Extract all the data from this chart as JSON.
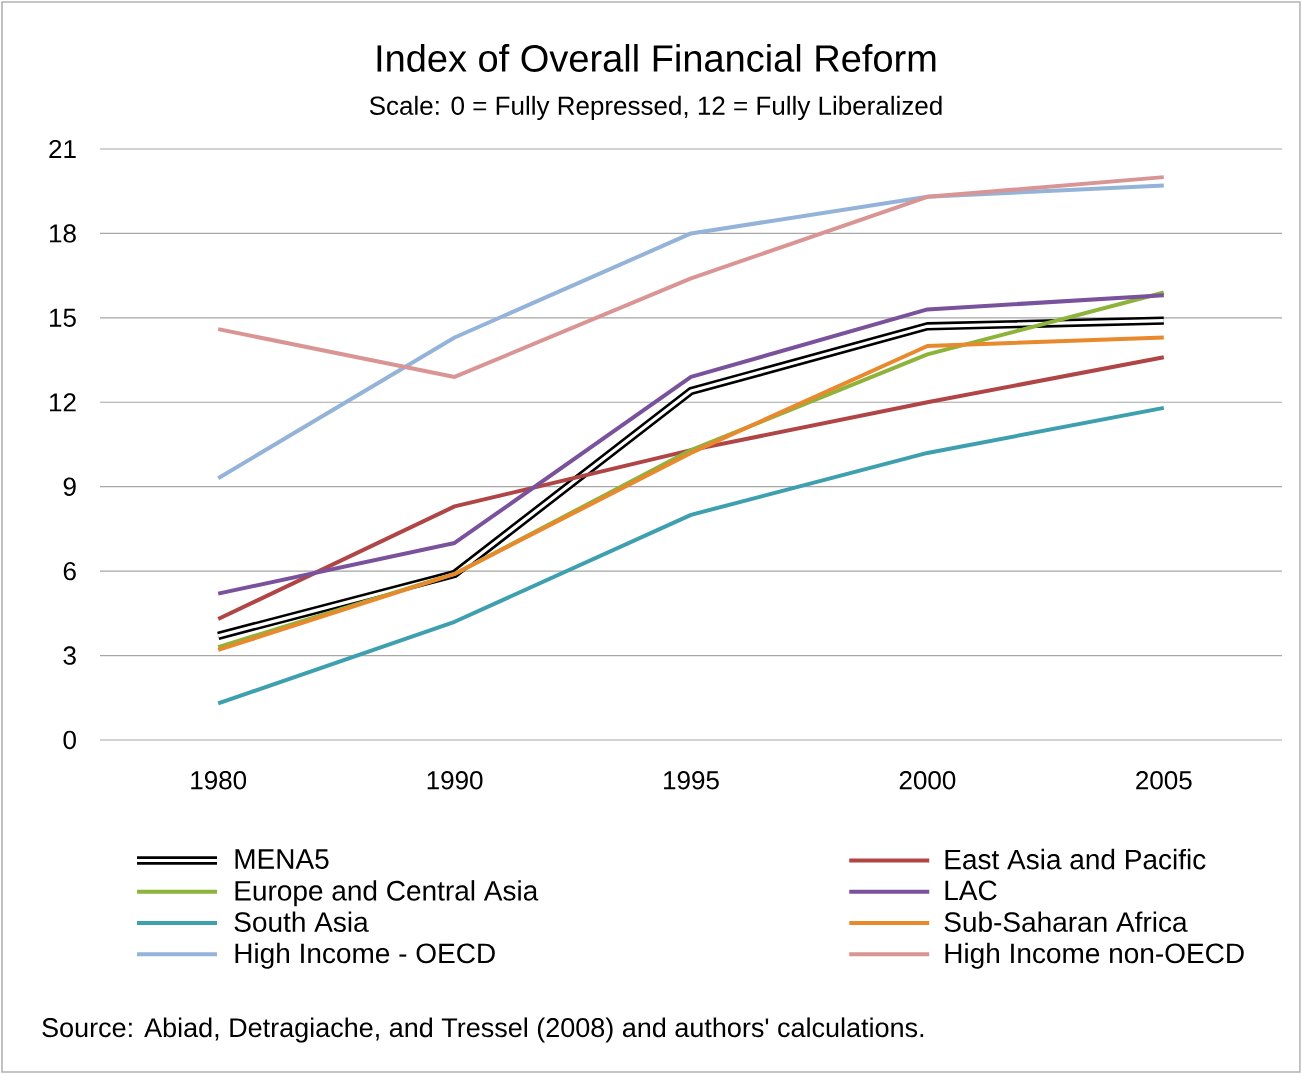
{
  "chart_data": {
    "type": "line",
    "title": "Index of Overall Financial Reform",
    "subtitle": "Scale: 0 = Fully Repressed, 12 = Fully Liberalized",
    "categories": [
      "1980",
      "1990",
      "1995",
      "2000",
      "2005"
    ],
    "series": [
      {
        "name": "MENA5",
        "color": "#000000",
        "values": [
          3.7,
          5.9,
          12.4,
          14.7,
          14.9
        ]
      },
      {
        "name": "East Asia and Pacific",
        "color": "#b04545",
        "values": [
          4.3,
          8.3,
          10.3,
          12.0,
          13.6
        ]
      },
      {
        "name": "Europe and Central Asia",
        "color": "#8db33b",
        "values": [
          3.3,
          5.9,
          10.3,
          13.7,
          15.9
        ]
      },
      {
        "name": "LAC",
        "color": "#7a529c",
        "values": [
          5.2,
          7.0,
          12.9,
          15.3,
          15.8
        ]
      },
      {
        "name": "South Asia",
        "color": "#3ea0ae",
        "values": [
          1.3,
          4.2,
          8.0,
          10.2,
          11.8
        ]
      },
      {
        "name": "Sub-Saharan Africa",
        "color": "#e8892e",
        "values": [
          3.2,
          5.9,
          10.2,
          14.0,
          14.3
        ]
      },
      {
        "name": "High Income - OECD",
        "color": "#94b3d8",
        "values": [
          9.3,
          14.3,
          18.0,
          19.3,
          19.7
        ]
      },
      {
        "name": "High Income non-OECD",
        "color": "#d99594",
        "values": [
          14.6,
          12.9,
          16.4,
          19.3,
          20.0
        ]
      }
    ],
    "ylim": [
      0,
      21
    ],
    "yticks": [
      0,
      3,
      6,
      9,
      12,
      15,
      18,
      21
    ],
    "grid": "y",
    "legend": "bottom",
    "line_style": "solid",
    "annotations": [
      "Source: Abiad,  Detragiache, and Tressel (2008) and authors'  calculations."
    ]
  }
}
